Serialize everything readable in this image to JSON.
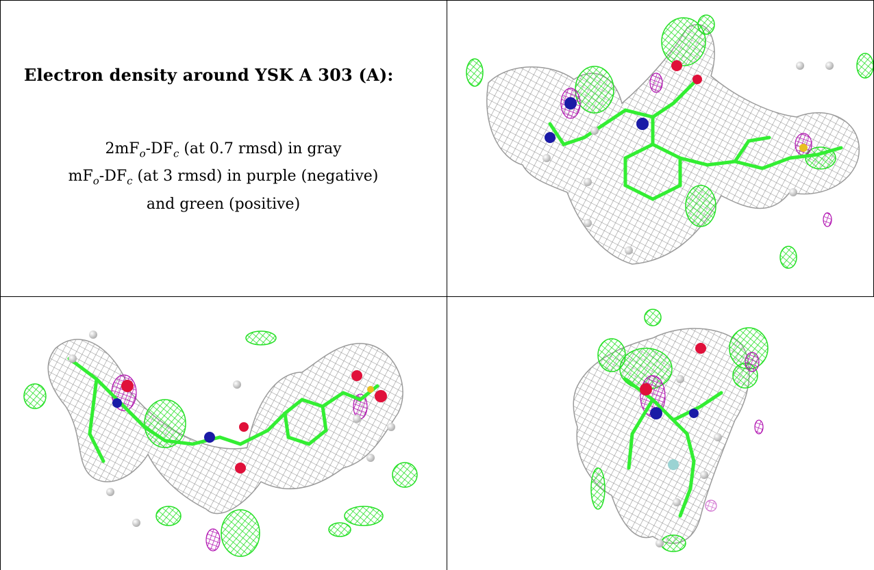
{
  "panel_text": {
    "title": "Electron density around YSK A 303 (A):",
    "line1": {
      "pre": "2mF",
      "sub1": "o",
      "mid": "-DF",
      "sub2": "c",
      "post": " (at 0.7 rmsd) in gray"
    },
    "line2": {
      "pre": "mF",
      "sub1": "o",
      "mid": "-DF",
      "sub2": "c",
      "post": " (at 3 rmsd) in purple (negative)"
    },
    "line3": "and green (positive)"
  },
  "colors": {
    "mesh_2fofc": "#8c8c8c",
    "mesh_positive": "#22e022",
    "mesh_negative": "#b010b0",
    "carbon": "#33ee33",
    "nitrogen": "#1a1aa6",
    "oxygen": "#e0103a",
    "hydrogen": "#cfcfcf",
    "sulfur": "#e8c020"
  },
  "views": [
    {
      "name": "view-top-right"
    },
    {
      "name": "view-bottom-left"
    },
    {
      "name": "view-bottom-right"
    }
  ]
}
